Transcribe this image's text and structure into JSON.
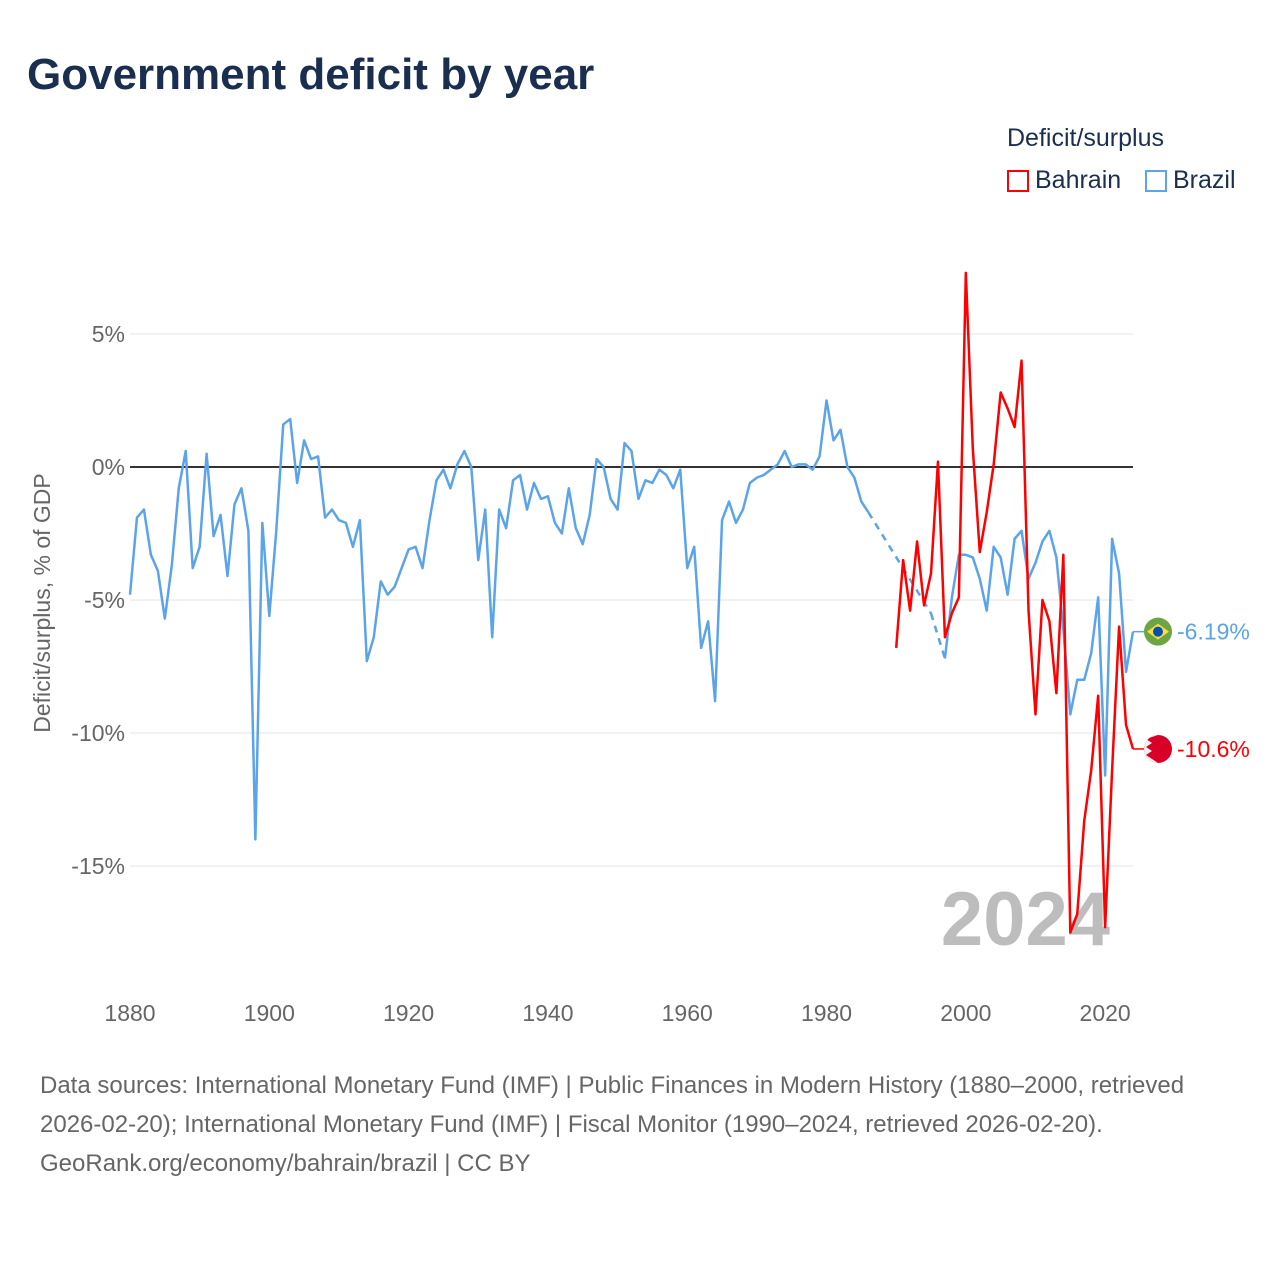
{
  "title": "Government deficit by year",
  "legend": {
    "title": "Deficit/surplus",
    "items": [
      {
        "name": "Bahrain",
        "color": "#ff0000"
      },
      {
        "name": "Brazil",
        "color": "#5ba4ea"
      }
    ]
  },
  "footer": {
    "sources": "Data sources: International Monetary Fund (IMF) | Public Finances in Modern History (1880–2000, retrieved 2026-02-20); International Monetary Fund (IMF) | Fiscal Monitor (1990–2024, retrieved 2026-02-20).",
    "credit": "GeoRank.org/economy/bahrain/brazil | CC BY"
  },
  "chart_data": {
    "type": "line",
    "title": "Government deficit by year",
    "ylabel": "Deficit/surplus, % of GDP",
    "xlabel": "",
    "xlim": [
      1880,
      2024
    ],
    "ylim": [
      -18,
      7.5
    ],
    "x_ticks": [
      1880,
      1900,
      1920,
      1940,
      1960,
      1980,
      2000,
      2020
    ],
    "x_tick_labels": [
      "1880",
      "1900",
      "1920",
      "1940",
      "1960",
      "1980",
      "2000",
      "2020"
    ],
    "y_ticks": [
      5,
      0,
      -5,
      -10,
      -15
    ],
    "y_tick_labels": [
      "5%",
      "0%",
      "-5%",
      "-10%",
      "-15%"
    ],
    "watermark_year": "2024",
    "legend_position": "top-right",
    "series": [
      {
        "name": "Brazil",
        "color": "#5ba4ea",
        "start_year": 1880,
        "end_label": "-6.19%",
        "values": [
          -4.8,
          -1.9,
          -1.6,
          -3.3,
          -3.9,
          -5.7,
          -3.7,
          -0.8,
          0.6,
          -3.8,
          -3.0,
          0.5,
          -2.6,
          -1.8,
          -4.1,
          -1.4,
          -0.8,
          -2.4,
          -14.0,
          -2.1,
          -5.6,
          -2.4,
          1.6,
          1.8,
          -0.6,
          1.0,
          0.3,
          0.4,
          -1.9,
          -1.6,
          -2.0,
          -2.1,
          -3.0,
          -2.0,
          -7.3,
          -6.4,
          -4.3,
          -4.8,
          -4.5,
          -3.8,
          -3.1,
          -3.0,
          -3.8,
          -2.0,
          -0.5,
          -0.1,
          -0.8,
          0.1,
          0.6,
          0.0,
          -3.5,
          -1.6,
          -6.4,
          -1.6,
          -2.3,
          -0.5,
          -0.3,
          -1.6,
          -0.6,
          -1.2,
          -1.1,
          -2.1,
          -2.5,
          -0.8,
          -2.3,
          -2.9,
          -1.8,
          0.3,
          0.0,
          -1.2,
          -1.6,
          0.9,
          0.6,
          -1.2,
          -0.5,
          -0.6,
          -0.1,
          -0.3,
          -0.8,
          -0.1,
          -3.8,
          -3.0,
          -6.8,
          -5.8,
          -8.8,
          -2.0,
          -1.3,
          -2.1,
          -1.6,
          -0.6,
          -0.4,
          -0.3,
          -0.1,
          0.1,
          0.6,
          0.0,
          0.1,
          0.1,
          -0.1,
          0.4,
          2.5,
          1.0,
          1.4,
          0.0,
          -0.4,
          -1.3,
          -1.7,
          null,
          null,
          null,
          null,
          null,
          null,
          null,
          null,
          -5.5,
          null,
          -7.2,
          -4.9,
          -3.3,
          -3.3,
          -3.4,
          -4.2,
          -5.4,
          -3.0,
          -3.4,
          -4.8,
          -2.7,
          -2.4,
          -4.2,
          -3.6,
          -2.8,
          -2.4,
          -3.4,
          -6.1,
          -9.3,
          -8.0,
          -8.0,
          -7.0,
          -4.9,
          -11.6,
          -2.7,
          -4.0,
          -7.7,
          -6.19
        ]
      },
      {
        "name": "Bahrain",
        "color": "#ff0000",
        "start_year": 1990,
        "end_label": "-10.6%",
        "values": [
          -6.8,
          -3.5,
          -5.4,
          -2.8,
          -5.2,
          -4.0,
          0.2,
          -6.4,
          -5.5,
          -4.9,
          7.3,
          0.7,
          -3.2,
          -1.7,
          0.1,
          2.8,
          2.2,
          1.5,
          4.0,
          -5.4,
          -9.3,
          -5.0,
          -5.8,
          -8.5,
          -3.3,
          -17.5,
          -16.8,
          -13.3,
          -11.4,
          -8.6,
          -17.3,
          -11.4,
          -6.0,
          -9.7,
          -10.6
        ]
      }
    ]
  }
}
